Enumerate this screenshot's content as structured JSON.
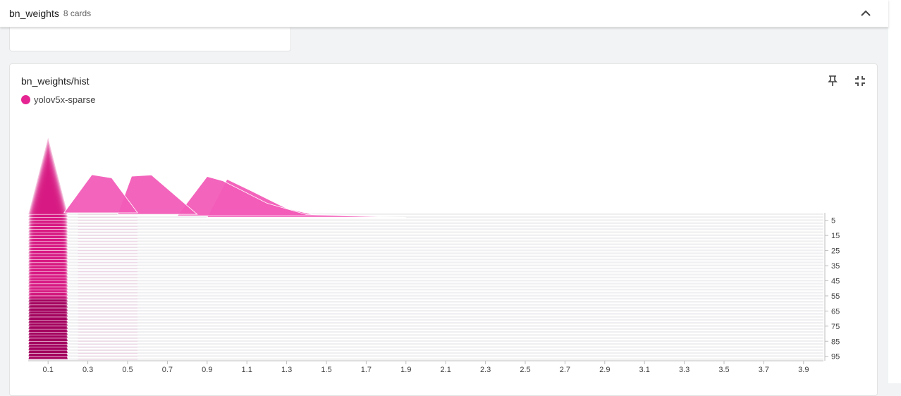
{
  "group": {
    "title": "bn_weights",
    "count_label": "8 cards"
  },
  "card": {
    "title": "bn_weights/hist",
    "legend_label": "yolov5x-sparse",
    "legend_color": "#e52592"
  },
  "icons": {
    "collapse": "chevron-up-icon",
    "pin": "pin-icon",
    "fit": "fullscreen-exit-icon"
  },
  "chart_data": {
    "type": "histogram-offset",
    "series_name": "yolov5x-sparse",
    "color": "#e52592",
    "x_ticks": [
      "0.1",
      "0.3",
      "0.5",
      "0.7",
      "0.9",
      "1.1",
      "1.3",
      "1.5",
      "1.7",
      "1.9",
      "2.1",
      "2.3",
      "2.5",
      "2.7",
      "2.9",
      "3.1",
      "3.3",
      "3.5",
      "3.7",
      "3.9"
    ],
    "x_tick_values": [
      0.1,
      0.3,
      0.5,
      0.7,
      0.9,
      1.1,
      1.3,
      1.5,
      1.7,
      1.9,
      2.1,
      2.3,
      2.5,
      2.7,
      2.9,
      3.1,
      3.3,
      3.5,
      3.7,
      3.9
    ],
    "xlim": [
      0.0,
      4.0
    ],
    "y_ticks": [
      "5",
      "15",
      "25",
      "35",
      "45",
      "55",
      "65",
      "75",
      "85",
      "95"
    ],
    "y_tick_values": [
      5,
      15,
      25,
      35,
      45,
      55,
      65,
      75,
      85,
      95
    ],
    "ylim": [
      0,
      97
    ],
    "highlighted_steps": [
      {
        "step": 0,
        "points": [
          [
            0.18,
            0
          ],
          [
            0.32,
            0.6
          ],
          [
            0.42,
            0.55
          ],
          [
            0.55,
            0
          ]
        ]
      },
      {
        "step": 1,
        "points": [
          [
            0.45,
            0
          ],
          [
            0.52,
            0.6
          ],
          [
            0.62,
            0.62
          ],
          [
            0.85,
            0
          ]
        ]
      },
      {
        "step": 2,
        "points": [
          [
            0.75,
            0
          ],
          [
            0.9,
            0.62
          ],
          [
            0.98,
            0.55
          ],
          [
            1.2,
            0.2
          ],
          [
            1.4,
            0.02
          ],
          [
            1.8,
            0
          ]
        ]
      },
      {
        "step": 3,
        "points": [
          [
            0.9,
            0
          ],
          [
            1.0,
            0.6
          ],
          [
            1.12,
            0.42
          ],
          [
            1.3,
            0.14
          ],
          [
            1.45,
            0.03
          ],
          [
            1.9,
            0
          ]
        ]
      }
    ]
  }
}
